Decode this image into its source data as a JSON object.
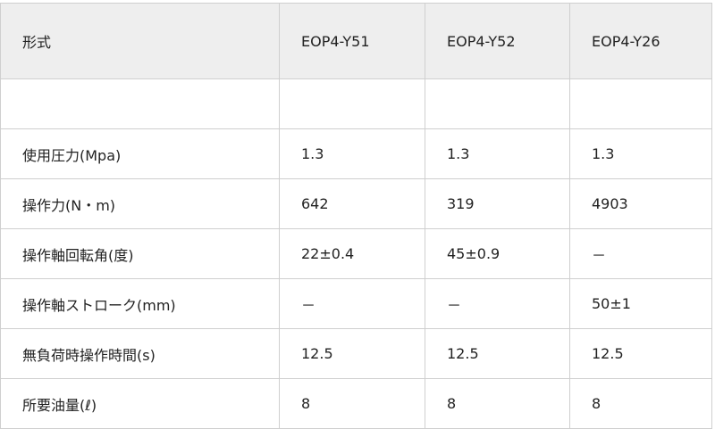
{
  "table": {
    "header": [
      "形式",
      "EOP4-Y51",
      "EOP4-Y52",
      "EOP4-Y26"
    ],
    "rows": [
      [
        "使用圧力(Mpa)",
        "1.3",
        "1.3",
        "1.3"
      ],
      [
        "操作力(N・m)",
        "642",
        "319",
        "4903"
      ],
      [
        "操作軸回転角(度)",
        "22±0.4",
        "45±0.9",
        "－"
      ],
      [
        "操作軸ストローク(mm)",
        "－",
        "－",
        "50±1"
      ],
      [
        "無負荷時操作時間(s)",
        "12.5",
        "12.5",
        "12.5"
      ],
      [
        "所要油量(ℓ)",
        "8",
        "8",
        "8"
      ]
    ]
  }
}
